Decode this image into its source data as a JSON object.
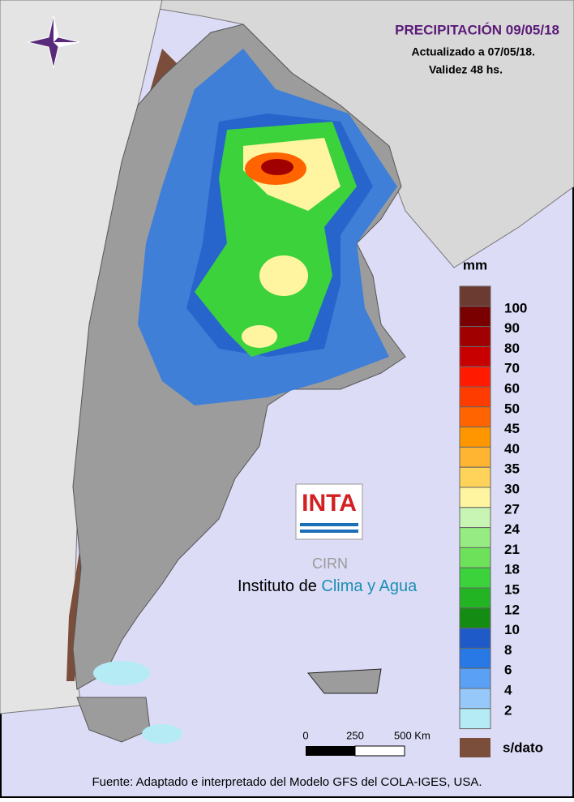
{
  "header": {
    "title": "PRECIPITACIÓN 09/05/18",
    "updated": "Actualizado a 07/05/18.",
    "validity": "Validez 48 hs."
  },
  "legend": {
    "unit": "mm",
    "top_color": "#6b3b32",
    "levels": [
      {
        "value": 100,
        "color": "#7a0000"
      },
      {
        "value": 90,
        "color": "#a00000"
      },
      {
        "value": 80,
        "color": "#c80000"
      },
      {
        "value": 70,
        "color": "#ff1a00"
      },
      {
        "value": 60,
        "color": "#ff3c00"
      },
      {
        "value": 50,
        "color": "#ff6400"
      },
      {
        "value": 45,
        "color": "#ff9600"
      },
      {
        "value": 40,
        "color": "#ffb432"
      },
      {
        "value": 35,
        "color": "#ffd25a"
      },
      {
        "value": 30,
        "color": "#fff5a0"
      },
      {
        "value": 27,
        "color": "#c8f5b4"
      },
      {
        "value": 24,
        "color": "#96eb82"
      },
      {
        "value": 21,
        "color": "#6ee15a"
      },
      {
        "value": 18,
        "color": "#3cd23c"
      },
      {
        "value": 15,
        "color": "#22b422"
      },
      {
        "value": 12,
        "color": "#148c14"
      },
      {
        "value": 10,
        "color": "#1e5ac8"
      },
      {
        "value": 8,
        "color": "#2878e6"
      },
      {
        "value": 6,
        "color": "#5aa0f5"
      },
      {
        "value": 4,
        "color": "#96c8fa"
      },
      {
        "value": 2,
        "color": "#b4ebf5"
      }
    ],
    "no_data": "s/dato"
  },
  "scale_bar": {
    "labels": [
      "0",
      "250",
      "500 Km"
    ]
  },
  "logo": {
    "brand": "INTA",
    "center": "CIRN",
    "institute_prefix": "Instituto de",
    "institute_highlight": "Clima y Agua"
  },
  "footer": "Fuente: Adaptado e interpretado del Modelo GFS del COLA-IGES, USA."
}
